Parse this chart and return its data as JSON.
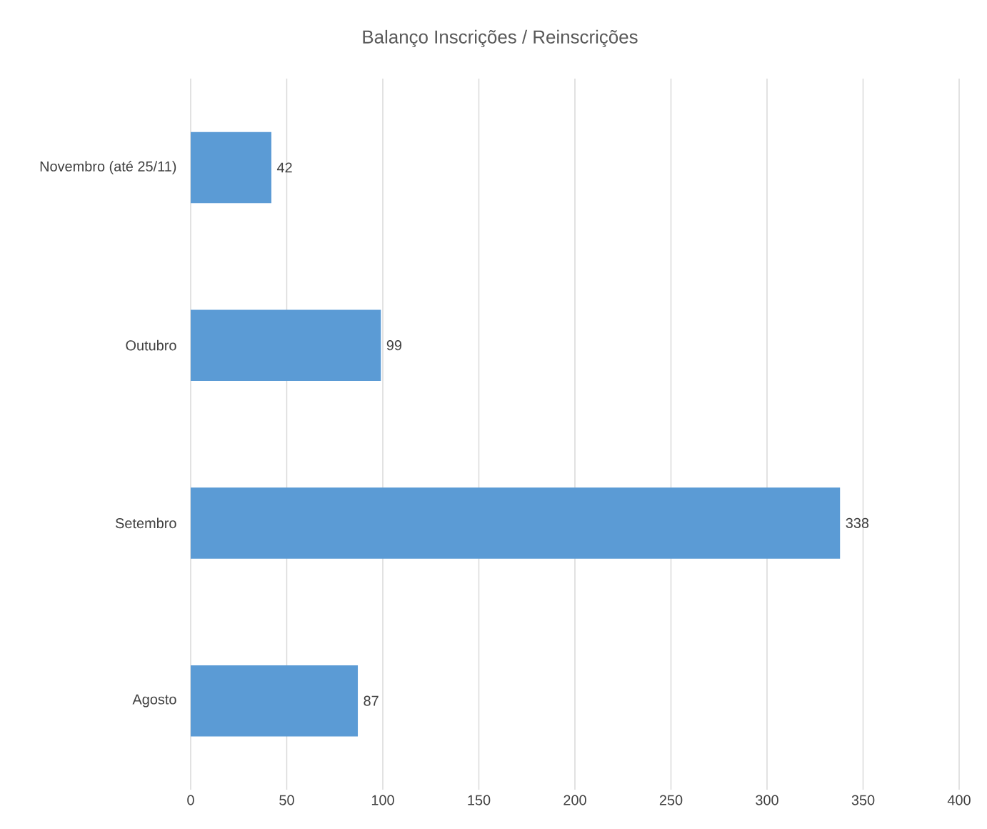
{
  "chart_data": {
    "type": "bar",
    "orientation": "horizontal",
    "title": "Balanço Inscrições / Reinscrições",
    "categories": [
      "Novembro (até 25/11)",
      "Outubro",
      "Setembro",
      "Agosto"
    ],
    "values": [
      42,
      99,
      338,
      87
    ],
    "color": "#5b9bd5",
    "xlim": [
      0,
      400
    ],
    "xticks": [
      0,
      50,
      100,
      150,
      200,
      250,
      300,
      350,
      400
    ],
    "grid": "x",
    "data_labels": true
  }
}
